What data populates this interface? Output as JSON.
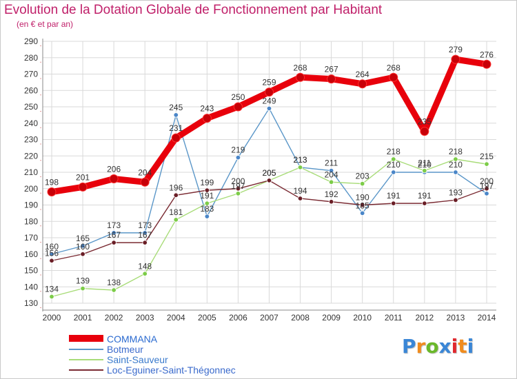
{
  "header": {
    "title": "Evolution de la Dotation Globale de Fonctionnement par Habitant",
    "subtitle": "(en € et par an)"
  },
  "brand": {
    "text": "Proxiti",
    "colors": [
      "#3a86d6",
      "#f08c1e",
      "#6ab82a",
      "#3a86d6",
      "#e0282e",
      "#f08c1e",
      "#3a86d6"
    ]
  },
  "chart_data": {
    "type": "line",
    "x": [
      "2000",
      "2001",
      "2002",
      "2003",
      "2004",
      "2005",
      "2006",
      "2007",
      "2008",
      "2009",
      "2010",
      "2011",
      "2012",
      "2013",
      "2014"
    ],
    "ylim": [
      130,
      290
    ],
    "yticks": [
      130,
      140,
      150,
      160,
      170,
      180,
      190,
      200,
      210,
      220,
      230,
      240,
      250,
      260,
      270,
      280,
      290
    ],
    "grid": true,
    "legend_position": "bottom-left",
    "series": [
      {
        "name": "COMMANA",
        "color": "#e8000b",
        "emphasis": true,
        "values": [
          198,
          201,
          206,
          204,
          231,
          243,
          250,
          259,
          268,
          267,
          264,
          268,
          235,
          279,
          276
        ]
      },
      {
        "name": "Botmeur",
        "color": "#5a96c8",
        "marker": "#4a86c8",
        "values": [
          160,
          165,
          173,
          173,
          245,
          183,
          219,
          249,
          213,
          211,
          185,
          210,
          210,
          210,
          197
        ]
      },
      {
        "name": "Saint-Sauveur",
        "color": "#a8dc78",
        "marker": "#7ccc48",
        "values": [
          134,
          139,
          138,
          148,
          181,
          191,
          197,
          205,
          213,
          204,
          203,
          218,
          211,
          218,
          215
        ]
      },
      {
        "name": "Loc-Eguiner-Saint-Thégonnec",
        "color": "#7a2a32",
        "marker": "#6a1e26",
        "values": [
          156,
          160,
          167,
          167,
          196,
          199,
          200,
          205,
          194,
          192,
          190,
          191,
          191,
          193,
          200
        ]
      }
    ]
  }
}
